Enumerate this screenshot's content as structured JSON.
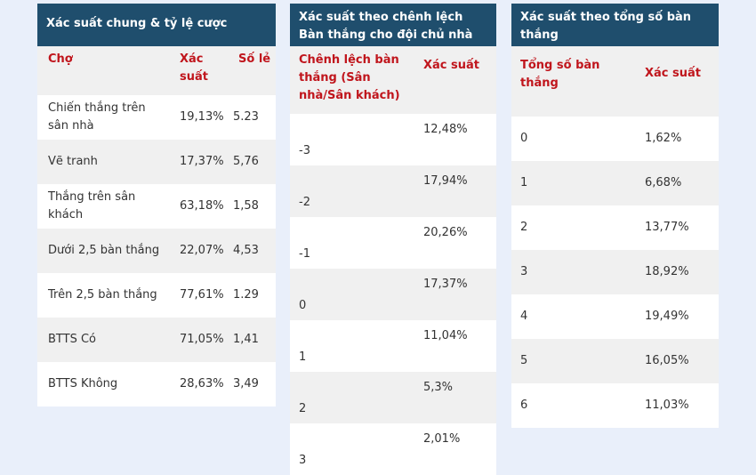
{
  "panel1": {
    "title": "Xác suất chung & tỷ lệ cược",
    "headers": [
      "Chợ",
      "Xác suất",
      "Số lẻ"
    ],
    "rows": [
      [
        "Chiến thắng trên sân nhà",
        "19,13%",
        "5.23"
      ],
      [
        "Vẽ tranh",
        "17,37%",
        "5,76"
      ],
      [
        "Thắng trên sân khách",
        "63,18%",
        "1,58"
      ],
      [
        "Dưới 2,5 bàn thắng",
        "22,07%",
        "4,53"
      ],
      [
        "Trên 2,5 bàn thắng",
        "77,61%",
        "1.29"
      ],
      [
        "BTTS Có",
        "71,05%",
        "1,41"
      ],
      [
        "BTTS Không",
        "28,63%",
        "3,49"
      ]
    ]
  },
  "panel2": {
    "title": "Xác suất theo chênh lệch Bàn thắng cho đội chủ nhà",
    "headers": [
      "Chênh lệch bàn thắng (Sân nhà/Sân khách)",
      "Xác suất"
    ],
    "rows": [
      [
        "-3",
        "12,48%"
      ],
      [
        "-2",
        "17,94%"
      ],
      [
        "-1",
        "20,26%"
      ],
      [
        "0",
        "17,37%"
      ],
      [
        "1",
        "11,04%"
      ],
      [
        "2",
        "5,3%"
      ],
      [
        "3",
        "2,01%"
      ]
    ]
  },
  "panel3": {
    "title": "Xác suất theo tổng số bàn thắng",
    "headers": [
      "Tổng số bàn thắng",
      "Xác suất"
    ],
    "rows": [
      [
        "0",
        "1,62%"
      ],
      [
        "1",
        "6,68%"
      ],
      [
        "2",
        "13,77%"
      ],
      [
        "3",
        "18,92%"
      ],
      [
        "4",
        "19,49%"
      ],
      [
        "5",
        "16,05%"
      ],
      [
        "6",
        "11,03%"
      ]
    ]
  }
}
